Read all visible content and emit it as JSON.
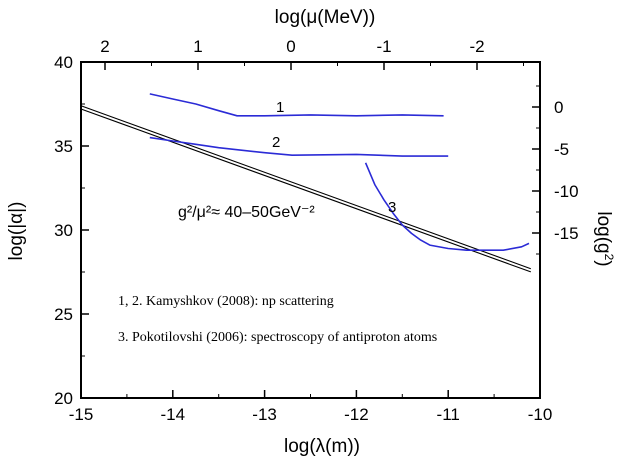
{
  "chart_data": {
    "type": "line",
    "xlabel": "log(λ(m))",
    "ylabel": "log(|α|)",
    "top_xlabel": "log(μ(MeV))",
    "right_ylabel": "log(g²)",
    "xlim": [
      -15,
      -10
    ],
    "ylim": [
      20,
      40
    ],
    "x_ticks": [
      "-15",
      "-14",
      "-13",
      "-12",
      "-11",
      "-10"
    ],
    "y_ticks": [
      "20",
      "25",
      "30",
      "35",
      "40"
    ],
    "top_ticks": [
      "2",
      "1",
      "0",
      "-1",
      "-2"
    ],
    "right_ticks": [
      "0",
      "-5",
      "-10",
      "-15"
    ],
    "grid": false,
    "series": [
      {
        "name": "1",
        "x": [
          -14.25,
          -14.0,
          -13.75,
          -13.5,
          -13.3,
          -13.0,
          -12.5,
          -12.0,
          -11.5,
          -11.05
        ],
        "y": [
          38.1,
          37.8,
          37.5,
          37.1,
          36.8,
          36.8,
          36.85,
          36.8,
          36.85,
          36.8
        ]
      },
      {
        "name": "2",
        "x": [
          -14.25,
          -14.0,
          -13.75,
          -13.5,
          -13.0,
          -12.7,
          -12.0,
          -11.5,
          -11.0
        ],
        "y": [
          35.5,
          35.3,
          35.1,
          34.9,
          34.6,
          34.45,
          34.5,
          34.4,
          34.4
        ]
      },
      {
        "name": "3",
        "x": [
          -11.9,
          -11.8,
          -11.7,
          -11.6,
          -11.5,
          -11.4,
          -11.3,
          -11.2,
          -11.0,
          -10.8,
          -10.6,
          -10.4,
          -10.2,
          -10.12
        ],
        "y": [
          34.0,
          32.7,
          31.8,
          31.0,
          30.3,
          29.8,
          29.4,
          29.1,
          28.9,
          28.8,
          28.8,
          28.8,
          29.0,
          29.2
        ]
      }
    ],
    "fit_line": {
      "x": [
        -15,
        -10.1
      ],
      "y": [
        37.3,
        27.6
      ]
    },
    "annotations": {
      "curve_labels": [
        "1",
        "2",
        "3"
      ],
      "relation": "g²/μ²≈ 40–50GeV⁻²",
      "note_1": "1, 2. Kamyshkov (2008): np scattering",
      "note_2": "3. Pokotilovshi (2006): spectroscopy of antiproton atoms"
    },
    "colors": {
      "curves": "#2b2bd6",
      "fit_line": "#000000",
      "axes": "#000000"
    }
  }
}
